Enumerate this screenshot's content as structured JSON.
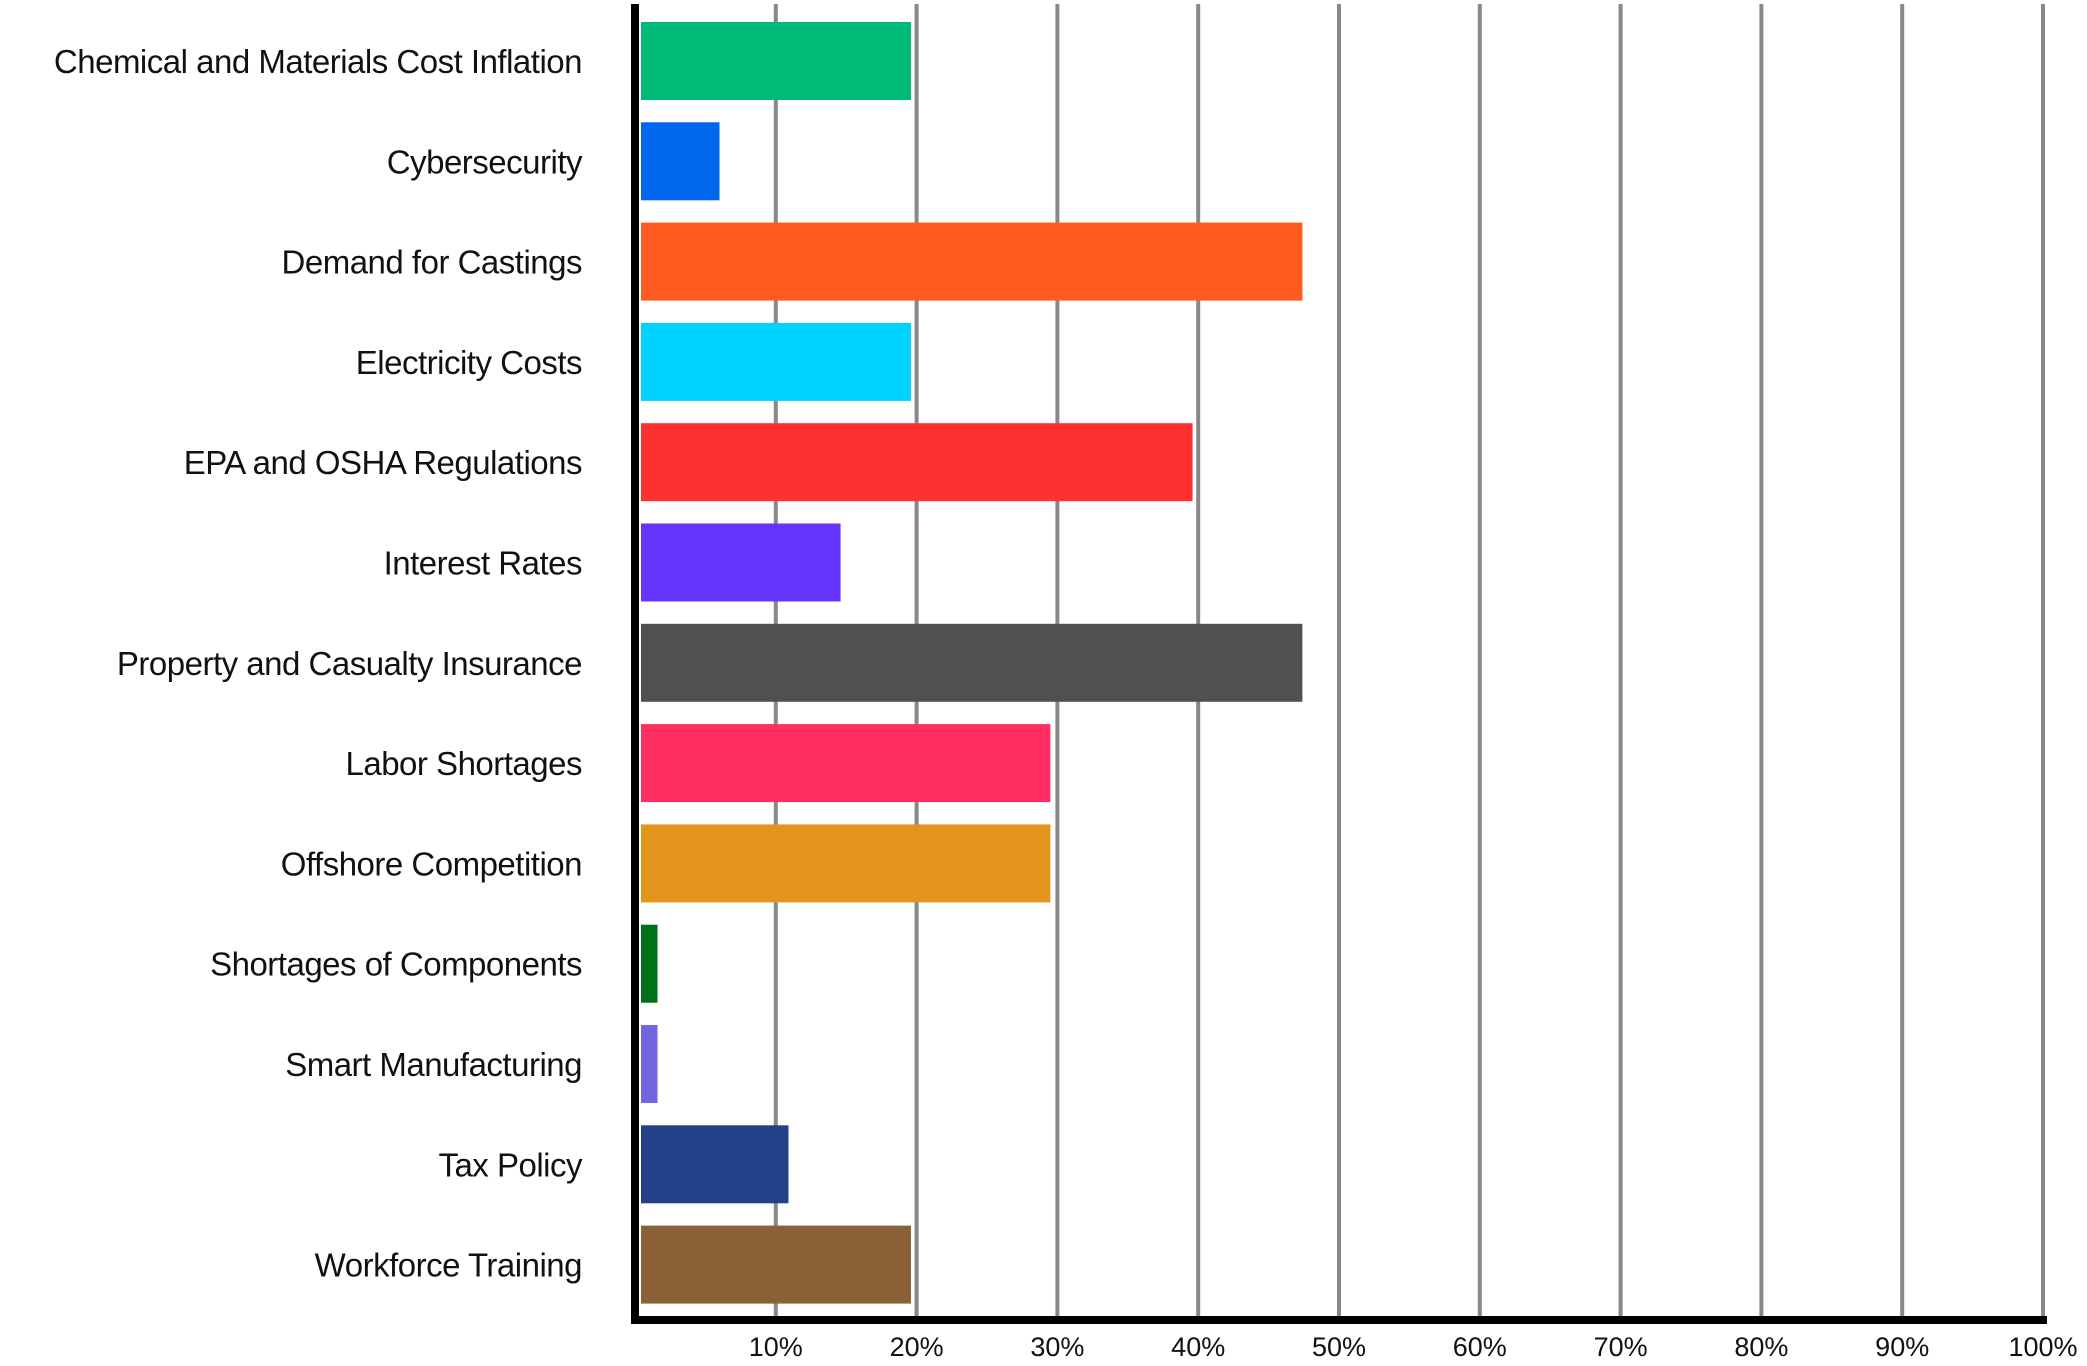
{
  "chart_data": {
    "type": "bar",
    "orientation": "horizontal",
    "title": "",
    "xlabel": "",
    "ylabel": "",
    "xlim": [
      0,
      100
    ],
    "x_unit": "%",
    "grid": "vertical",
    "legend": "none",
    "x_ticks": [
      {
        "value": 10,
        "label": "10%"
      },
      {
        "value": 20,
        "label": "20%"
      },
      {
        "value": 30,
        "label": "30%"
      },
      {
        "value": 40,
        "label": "40%"
      },
      {
        "value": 50,
        "label": "50%"
      },
      {
        "value": 60,
        "label": "60%"
      },
      {
        "value": 70,
        "label": "70%"
      },
      {
        "value": 80,
        "label": "80%"
      },
      {
        "value": 90,
        "label": "90%"
      },
      {
        "value": 100,
        "label": "100%"
      }
    ],
    "categories": [
      "Chemical and Materials Cost Inflation",
      "Cybersecurity",
      "Demand for Castings",
      "Electricity Costs",
      "EPA and OSHA Regulations",
      "Interest Rates",
      "Property and Casualty Insurance",
      "Labor Shortages",
      "Offshore Competition",
      "Shortages of Components",
      "Smart Manufacturing",
      "Tax Policy",
      "Workforce Training"
    ],
    "values": [
      19.6,
      6.0,
      47.4,
      19.6,
      39.6,
      14.6,
      47.4,
      29.5,
      29.5,
      1.6,
      1.6,
      10.9,
      19.6
    ],
    "colors": [
      "#00BB77",
      "#0066EE",
      "#FF5A1F",
      "#00D2FF",
      "#FF3030",
      "#6633FF",
      "#505050",
      "#FF2D60",
      "#E2941B",
      "#007018",
      "#7464E0",
      "#244088",
      "#8A6035"
    ],
    "gridline_color": "#888888",
    "axis_color": "#000000"
  }
}
